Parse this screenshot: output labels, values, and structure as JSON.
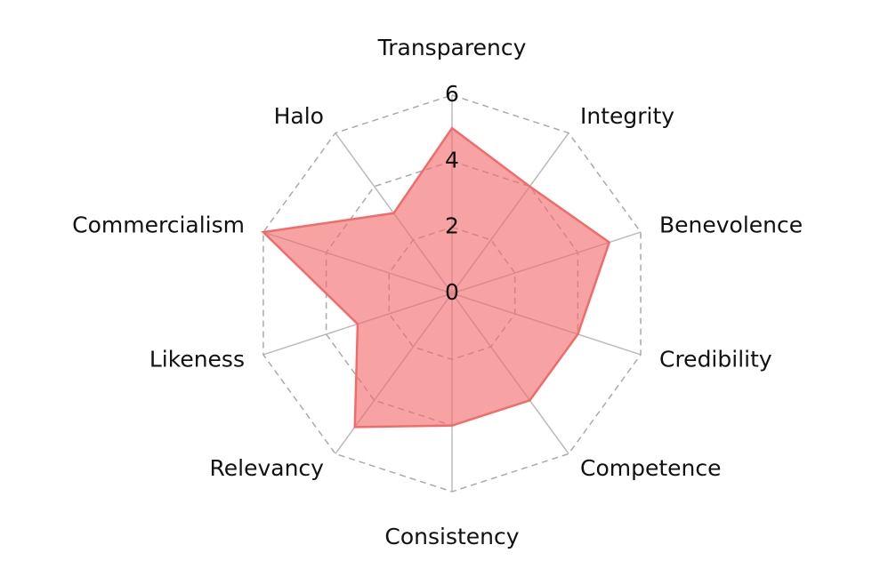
{
  "chart_data": {
    "type": "radar",
    "categories": [
      "Transparency",
      "Integrity",
      "Benevolence",
      "Credibility",
      "Competence",
      "Consistency",
      "Relevancy",
      "Likeness",
      "Commercialism",
      "Halo"
    ],
    "values": [
      5,
      4,
      5,
      4,
      4,
      4,
      5,
      3,
      6,
      3
    ],
    "color": "#f26b6b",
    "ylim": [
      0,
      6
    ],
    "yticks": [
      0,
      2,
      4,
      6
    ],
    "grid": true
  }
}
